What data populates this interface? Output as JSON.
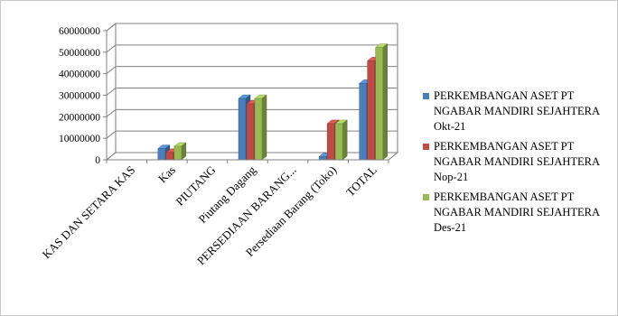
{
  "chart_data": {
    "type": "bar",
    "style": "3d-clustered-column",
    "categories": [
      "KAS DAN SETARA KAS",
      "Kas",
      "PIUTANG",
      "Piutang Dagang",
      "PERSEDIAAN BARANG...",
      "Persediaan Barang (Toko)",
      "TOTAL"
    ],
    "series": [
      {
        "name": "PERKEMBANGAN ASET PT NGABAR MANDIRI SEJAHTERA Okt-21",
        "color": "#4a7ebb",
        "values": [
          0,
          5200000,
          0,
          28500000,
          0,
          1500000,
          35500000
        ]
      },
      {
        "name": "PERKEMBANGAN ASET PT NGABAR MANDIRI SEJAHTERA Nop-21",
        "color": "#be4b48",
        "values": [
          0,
          3400000,
          0,
          26000000,
          0,
          16800000,
          46000000
        ]
      },
      {
        "name": "PERKEMBANGAN ASET PT NGABAR MANDIRI SEJAHTERA Des-21",
        "color": "#98b954",
        "values": [
          0,
          6300000,
          0,
          28500000,
          0,
          16800000,
          52200000
        ]
      }
    ],
    "yticks": [
      "0",
      "10000000",
      "20000000",
      "30000000",
      "40000000",
      "50000000",
      "60000000"
    ],
    "ylim": [
      0,
      60000000
    ],
    "grid": true,
    "legend_position": "right",
    "title": "",
    "xlabel": "",
    "ylabel": ""
  }
}
